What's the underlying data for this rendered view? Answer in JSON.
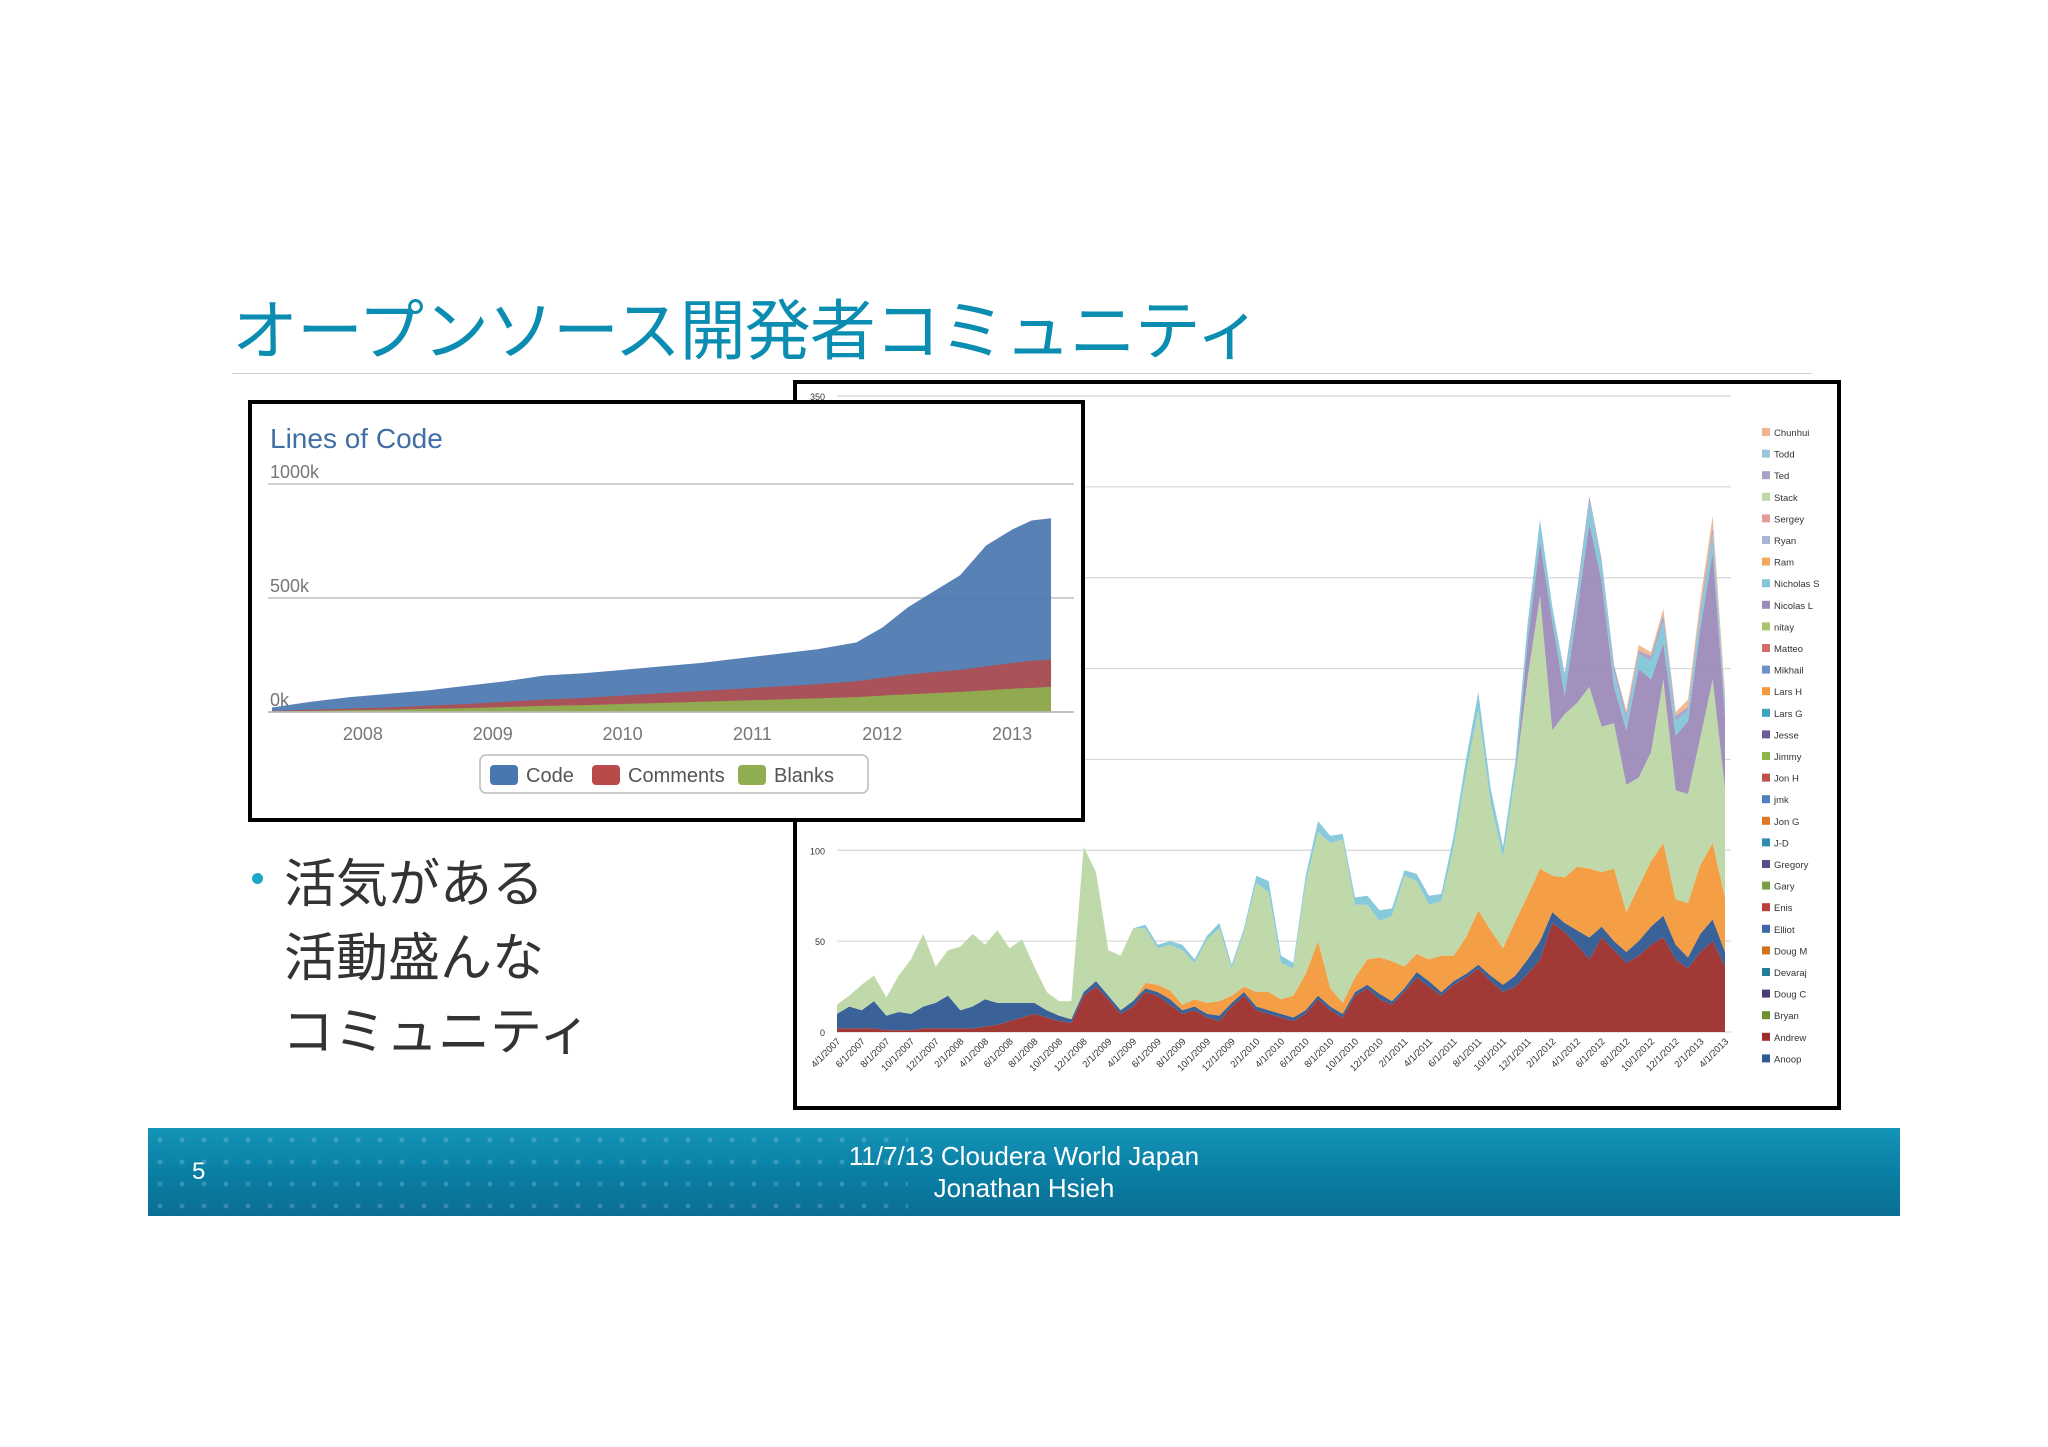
{
  "slide": {
    "title": "オープンソース開発者コミュニティ",
    "bullet_lines": [
      "活気がある",
      "活動盛んな",
      "コミュニティ"
    ],
    "page_number": "5",
    "footer_line1": "11/7/13 Cloudera World Japan",
    "footer_line2": "Jonathan Hsieh",
    "colors": {
      "title": "#0a8db0",
      "footer": "#0b7fa5",
      "bullet": "#1fa5c8"
    }
  },
  "chart_data": [
    {
      "type": "area",
      "title": "Lines of Code",
      "x_tick_labels": [
        "2008",
        "2009",
        "2010",
        "2011",
        "2012",
        "2013"
      ],
      "y_tick_labels": [
        "1000k",
        "500k",
        "0k"
      ],
      "ylim": [
        0,
        1000000
      ],
      "x": [
        2007.3,
        2007.6,
        2007.9,
        2008.2,
        2008.5,
        2008.8,
        2009.1,
        2009.4,
        2009.7,
        2010.0,
        2010.3,
        2010.6,
        2010.9,
        2011.2,
        2011.5,
        2011.8,
        2012.0,
        2012.2,
        2012.4,
        2012.6,
        2012.8,
        2013.0,
        2013.15,
        2013.3
      ],
      "legend_position": "bottom",
      "series": [
        {
          "name": "Code",
          "color": "#4a76b0",
          "values": [
            20000,
            45000,
            65000,
            80000,
            95000,
            115000,
            135000,
            160000,
            170000,
            185000,
            200000,
            215000,
            235000,
            255000,
            275000,
            305000,
            370000,
            460000,
            530000,
            600000,
            730000,
            800000,
            840000,
            850000
          ]
        },
        {
          "name": "Comments",
          "color": "#b84a4a",
          "values": [
            5000,
            10000,
            15000,
            20000,
            28000,
            35000,
            45000,
            55000,
            62000,
            72000,
            82000,
            92000,
            102000,
            112000,
            122000,
            135000,
            150000,
            165000,
            175000,
            185000,
            200000,
            215000,
            225000,
            230000
          ]
        },
        {
          "name": "Blanks",
          "color": "#8fae4f",
          "values": [
            3000,
            5000,
            8000,
            10000,
            14000,
            17000,
            22000,
            27000,
            30000,
            35000,
            40000,
            45000,
            50000,
            55000,
            60000,
            65000,
            72000,
            78000,
            83000,
            88000,
            95000,
            102000,
            106000,
            110000
          ]
        }
      ]
    },
    {
      "type": "area",
      "title": "",
      "y_tick_labels": [
        "350",
        "100",
        "50",
        "0"
      ],
      "ylim": [
        0,
        350
      ],
      "x_tick_labels": [
        "4/1/2007",
        "6/1/2007",
        "8/1/2007",
        "10/1/2007",
        "12/1/2007",
        "2/1/2008",
        "4/1/2008",
        "6/1/2008",
        "8/1/2008",
        "10/1/2008",
        "12/1/2008",
        "2/1/2009",
        "4/1/2009",
        "6/1/2009",
        "8/1/2009",
        "10/1/2009",
        "12/1/2009",
        "2/1/2010",
        "4/1/2010",
        "6/1/2010",
        "8/1/2010",
        "10/1/2010",
        "12/1/2010",
        "2/1/2011",
        "4/1/2011",
        "6/1/2011",
        "8/1/2011",
        "10/1/2011",
        "12/1/2011",
        "2/1/2012",
        "4/1/2012",
        "6/1/2012",
        "8/1/2012",
        "10/1/2012",
        "12/1/2012",
        "2/1/2013",
        "4/1/2013"
      ],
      "legend_position": "right",
      "legend": [
        {
          "name": "Chunhui",
          "color": "#f2b58f"
        },
        {
          "name": "Todd",
          "color": "#9cc6dc"
        },
        {
          "name": "Ted",
          "color": "#a7a3c4"
        },
        {
          "name": "Stack",
          "color": "#bdd7a7"
        },
        {
          "name": "Sergey",
          "color": "#e69a96"
        },
        {
          "name": "Ryan",
          "color": "#a9b6d6"
        },
        {
          "name": "Ram",
          "color": "#f4a65a"
        },
        {
          "name": "Nicholas S",
          "color": "#82c7d9"
        },
        {
          "name": "Nicolas L",
          "color": "#9d8bb9"
        },
        {
          "name": "nitay",
          "color": "#a8c56b"
        },
        {
          "name": "Matteo",
          "color": "#cf6e6a"
        },
        {
          "name": "Mikhail",
          "color": "#6f90c6"
        },
        {
          "name": "Lars H",
          "color": "#f39a3c"
        },
        {
          "name": "Lars G",
          "color": "#3aa5c2"
        },
        {
          "name": "Jesse",
          "color": "#6b5a9c"
        },
        {
          "name": "Jimmy",
          "color": "#8db54a"
        },
        {
          "name": "Jon H",
          "color": "#c0504d"
        },
        {
          "name": "jmk",
          "color": "#4f81bd"
        },
        {
          "name": "Jon G",
          "color": "#e0782c"
        },
        {
          "name": "J-D",
          "color": "#2e8fae"
        },
        {
          "name": "Gregory",
          "color": "#5d4a8a"
        },
        {
          "name": "Gary",
          "color": "#77a043"
        },
        {
          "name": "Enis",
          "color": "#b8413c"
        },
        {
          "name": "Elliot",
          "color": "#3e67a6"
        },
        {
          "name": "Doug M",
          "color": "#d4711f"
        },
        {
          "name": "Devaraj",
          "color": "#257b99"
        },
        {
          "name": "Doug C",
          "color": "#4c3c78"
        },
        {
          "name": "Bryan",
          "color": "#6a8f34"
        },
        {
          "name": "Andrew",
          "color": "#9c2f2b"
        },
        {
          "name": "Anoop",
          "color": "#2f5a93"
        }
      ],
      "x_index": [
        0,
        1,
        2,
        3,
        4,
        5,
        6,
        7,
        8,
        9,
        10,
        11,
        12,
        13,
        14,
        15,
        16,
        17,
        18,
        19,
        20,
        21,
        22,
        23,
        24,
        25,
        26,
        27,
        28,
        29,
        30,
        31,
        32,
        33,
        34,
        35,
        36,
        37,
        38,
        39,
        40,
        41,
        42,
        43,
        44,
        45,
        46,
        47,
        48,
        49,
        50,
        51,
        52,
        53,
        54,
        55,
        56,
        57,
        58,
        59,
        60,
        61,
        62,
        63,
        64,
        65,
        66,
        67,
        68,
        69,
        70,
        71,
        72
      ],
      "series": [
        {
          "name": "Andrew",
          "color": "#9c2f2b",
          "values": [
            2,
            2,
            2,
            2,
            1,
            1,
            1,
            2,
            2,
            2,
            2,
            2,
            3,
            4,
            6,
            8,
            10,
            8,
            6,
            5,
            20,
            25,
            18,
            10,
            14,
            22,
            20,
            15,
            10,
            12,
            8,
            6,
            14,
            20,
            12,
            10,
            8,
            6,
            10,
            18,
            12,
            8,
            20,
            24,
            18,
            15,
            22,
            30,
            25,
            20,
            26,
            30,
            35,
            28,
            22,
            25,
            32,
            40,
            60,
            55,
            48,
            40,
            52,
            45,
            38,
            42,
            48,
            52,
            40,
            35,
            44,
            50,
            36
          ]
        },
        {
          "name": "Anoop",
          "color": "#2f5a93",
          "values": [
            8,
            12,
            10,
            15,
            8,
            10,
            9,
            12,
            14,
            18,
            10,
            12,
            15,
            12,
            10,
            8,
            6,
            4,
            3,
            2,
            2,
            3,
            2,
            2,
            3,
            2,
            2,
            3,
            2,
            2,
            2,
            3,
            2,
            2,
            2,
            2,
            2,
            2,
            2,
            2,
            2,
            2,
            2,
            2,
            3,
            2,
            2,
            3,
            3,
            2,
            2,
            2,
            2,
            3,
            4,
            6,
            8,
            10,
            6,
            5,
            8,
            12,
            6,
            5,
            6,
            8,
            10,
            12,
            8,
            6,
            10,
            12,
            8
          ]
        },
        {
          "name": "Lars H",
          "color": "#f39a3c",
          "values": [
            0,
            0,
            0,
            0,
            0,
            0,
            0,
            0,
            0,
            0,
            0,
            0,
            0,
            0,
            0,
            0,
            0,
            0,
            0,
            0,
            0,
            0,
            0,
            0,
            0,
            3,
            4,
            5,
            3,
            4,
            6,
            8,
            4,
            3,
            8,
            10,
            8,
            12,
            20,
            30,
            10,
            6,
            8,
            14,
            20,
            22,
            12,
            10,
            12,
            20,
            14,
            20,
            30,
            25,
            20,
            30,
            35,
            40,
            20,
            25,
            35,
            38,
            30,
            40,
            22,
            30,
            36,
            40,
            25,
            30,
            38,
            42,
            30
          ]
        },
        {
          "name": "Stack",
          "color": "#bdd7a7",
          "values": [
            5,
            6,
            14,
            14,
            10,
            20,
            30,
            40,
            20,
            25,
            35,
            40,
            30,
            40,
            30,
            35,
            20,
            10,
            8,
            10,
            80,
            60,
            25,
            30,
            40,
            30,
            20,
            25,
            30,
            20,
            35,
            40,
            15,
            30,
            60,
            55,
            20,
            15,
            50,
            60,
            80,
            90,
            40,
            30,
            20,
            25,
            50,
            40,
            30,
            30,
            60,
            90,
            110,
            70,
            50,
            80,
            120,
            150,
            80,
            90,
            90,
            100,
            80,
            80,
            70,
            60,
            60,
            90,
            60,
            60,
            70,
            90,
            60
          ]
        },
        {
          "name": "Nicolas L",
          "color": "#9d8bb9",
          "values": [
            0,
            0,
            0,
            0,
            0,
            0,
            0,
            0,
            0,
            0,
            0,
            0,
            0,
            0,
            0,
            0,
            0,
            0,
            0,
            0,
            0,
            0,
            0,
            0,
            0,
            0,
            0,
            0,
            0,
            0,
            0,
            0,
            0,
            0,
            0,
            0,
            0,
            0,
            0,
            0,
            0,
            0,
            0,
            0,
            0,
            0,
            0,
            0,
            0,
            0,
            0,
            0,
            0,
            0,
            0,
            0,
            20,
            30,
            60,
            10,
            50,
            90,
            80,
            20,
            30,
            60,
            40,
            20,
            30,
            40,
            60,
            70,
            40
          ]
        },
        {
          "name": "Nicholas S",
          "color": "#82c7d9",
          "values": [
            0,
            0,
            0,
            0,
            0,
            0,
            0,
            0,
            0,
            0,
            0,
            0,
            0,
            0,
            0,
            0,
            0,
            0,
            0,
            0,
            0,
            0,
            0,
            0,
            0,
            2,
            2,
            2,
            3,
            2,
            2,
            3,
            2,
            2,
            4,
            6,
            4,
            3,
            4,
            6,
            4,
            3,
            4,
            5,
            6,
            4,
            3,
            4,
            5,
            4,
            6,
            8,
            10,
            8,
            6,
            8,
            10,
            12,
            8,
            10,
            8,
            12,
            10,
            8,
            6,
            8,
            10,
            12,
            8,
            6,
            8,
            10,
            6
          ]
        },
        {
          "name": "Ted",
          "color": "#a7a3c4",
          "values": [
            0,
            0,
            0,
            0,
            0,
            0,
            0,
            0,
            0,
            0,
            0,
            0,
            0,
            0,
            0,
            0,
            0,
            0,
            0,
            0,
            0,
            0,
            0,
            0,
            0,
            0,
            0,
            0,
            0,
            0,
            0,
            0,
            0,
            0,
            0,
            0,
            0,
            0,
            0,
            0,
            0,
            0,
            0,
            0,
            0,
            0,
            0,
            0,
            0,
            0,
            0,
            0,
            0,
            0,
            0,
            0,
            0,
            0,
            0,
            2,
            4,
            3,
            2,
            4,
            3,
            2,
            3,
            4,
            3,
            2,
            3,
            4,
            2
          ]
        },
        {
          "name": "Chunhui",
          "color": "#f2b58f",
          "values": [
            0,
            0,
            0,
            0,
            0,
            0,
            0,
            0,
            0,
            0,
            0,
            0,
            0,
            0,
            0,
            0,
            0,
            0,
            0,
            0,
            0,
            0,
            0,
            0,
            0,
            0,
            0,
            0,
            0,
            0,
            0,
            0,
            0,
            0,
            0,
            0,
            0,
            0,
            0,
            0,
            0,
            0,
            0,
            0,
            0,
            0,
            0,
            0,
            0,
            0,
            0,
            0,
            0,
            0,
            0,
            0,
            0,
            0,
            0,
            0,
            0,
            0,
            0,
            0,
            2,
            3,
            2,
            3,
            2,
            4,
            5,
            6,
            4
          ]
        }
      ]
    }
  ]
}
